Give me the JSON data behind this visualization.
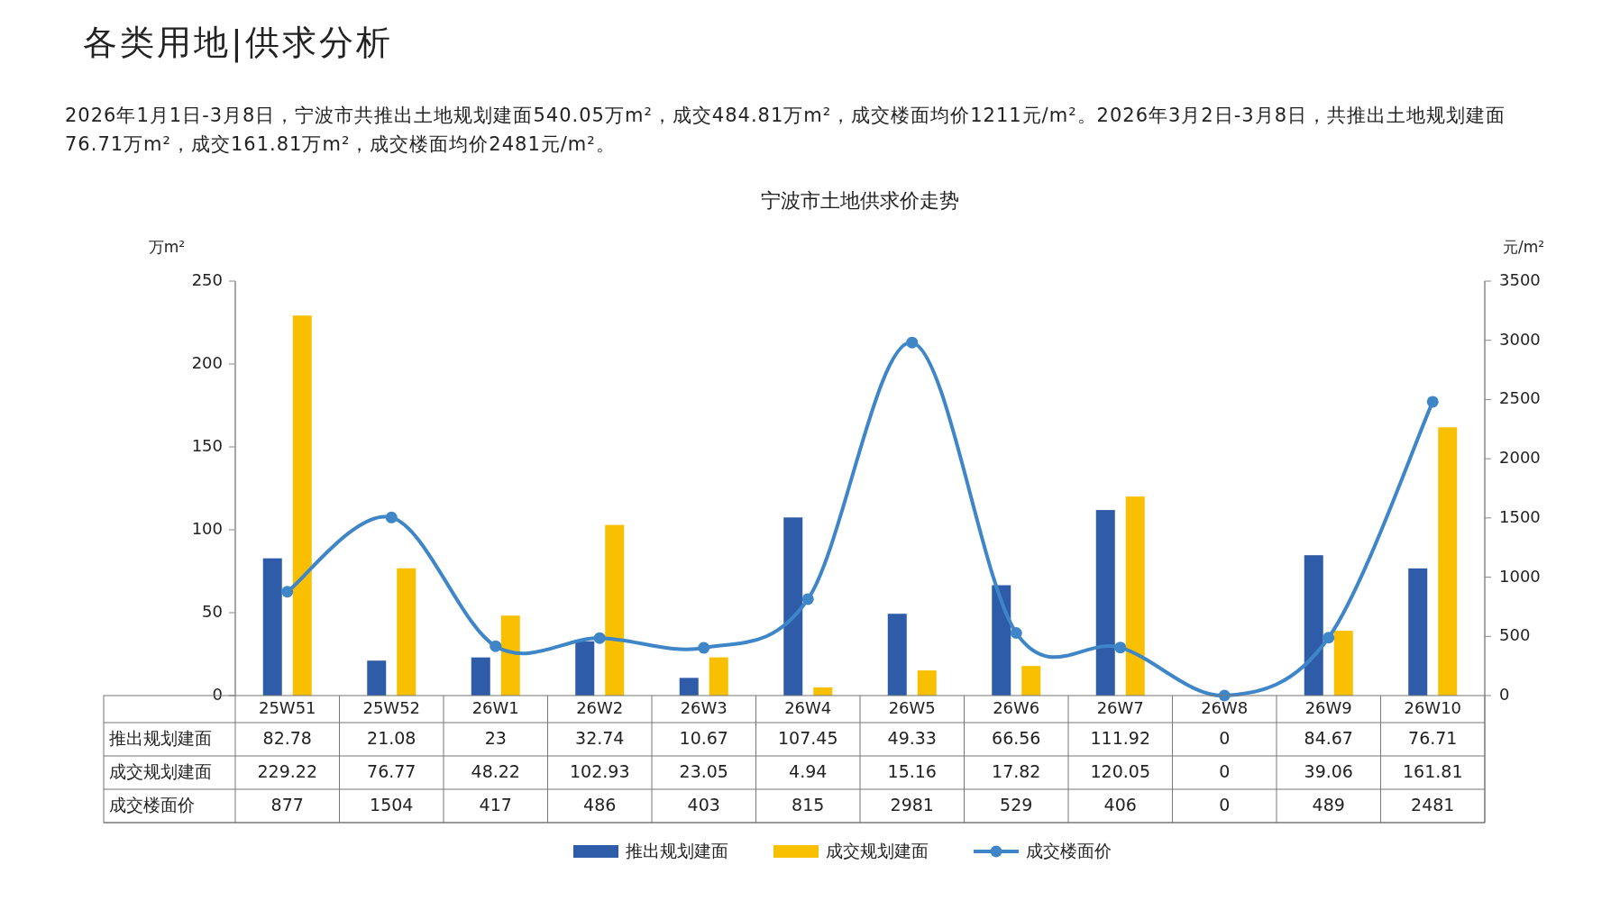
{
  "chart_data": {
    "type": "bar",
    "title": "宁波市土地供求价走势",
    "annotations": [
      "各类用地|供求分析",
      "2026年1月1日-3月8日，宁波市共推出土地规划建面540.05万m²，成交484.81万m²，成交楼面均价1211元/m²。2026年3月2日-3月8日，共推出土地规划建面76.71万m²，成交161.81万m²，成交楼面均价2481元/m²。"
    ],
    "ylabel": "万m²",
    "y2label": "元/m²",
    "categories": [
      "25W51",
      "25W52",
      "26W1",
      "26W2",
      "26W3",
      "26W4",
      "26W5",
      "26W6",
      "26W7",
      "26W8",
      "26W9",
      "26W10"
    ],
    "series": [
      {
        "name": "推出规划建面",
        "color": "#2e5ca8",
        "values": [
          82.78,
          21.08,
          23,
          32.74,
          10.67,
          107.45,
          49.33,
          66.56,
          111.92,
          0,
          84.67,
          76.71
        ]
      },
      {
        "name": "成交规划建面",
        "color": "#f8c000",
        "values": [
          229.22,
          76.77,
          48.22,
          102.93,
          23.05,
          4.94,
          15.16,
          17.82,
          120.05,
          0,
          39.06,
          161.81
        ]
      },
      {
        "name": "成交楼面价",
        "type": "line",
        "axis": "y2",
        "color": "#3f86c8",
        "marker": "circle",
        "values": [
          877,
          1504,
          417,
          486,
          403,
          815,
          2981,
          529,
          406,
          0,
          489,
          2481
        ]
      }
    ],
    "ylim": [
      0,
      250
    ],
    "yticks": [
      0,
      50,
      100,
      150,
      200,
      250
    ],
    "y2lim": [
      0,
      3500
    ],
    "y2ticks": [
      0,
      500,
      1000,
      1500,
      2000,
      2500,
      3000,
      3500
    ],
    "data_labels": true,
    "legend": "bottom"
  }
}
